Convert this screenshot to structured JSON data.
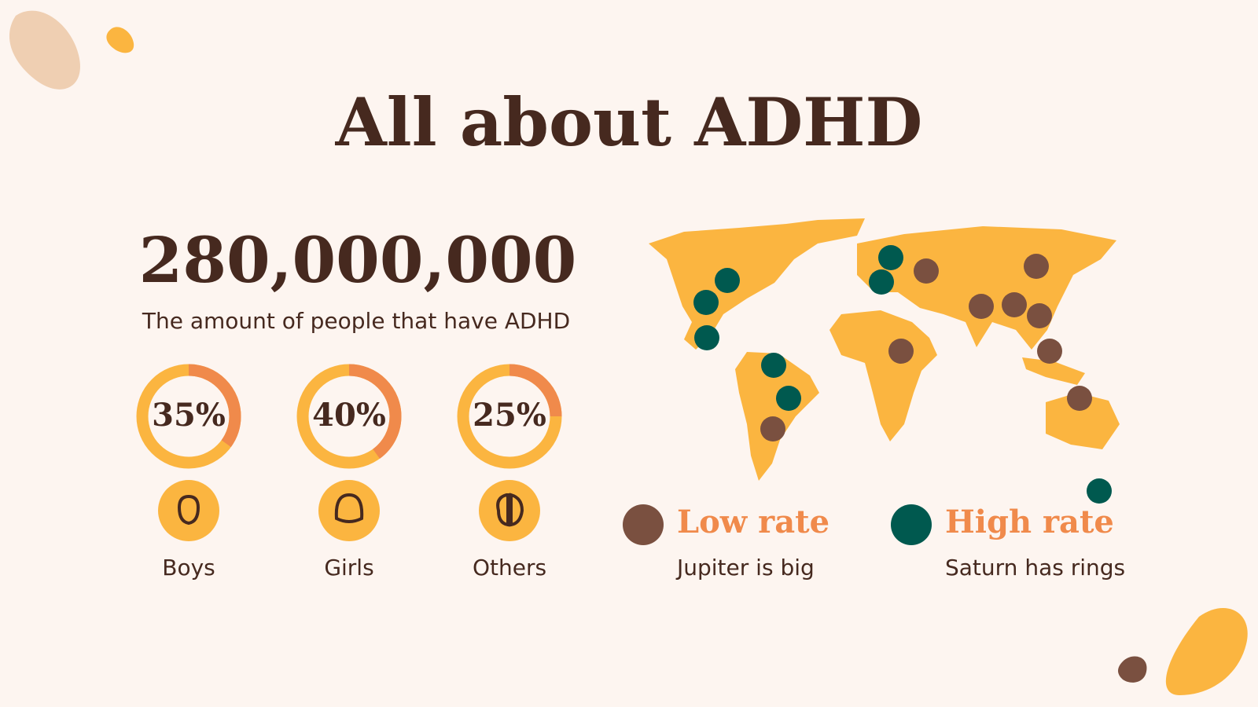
{
  "title": "All about ADHD",
  "headline": {
    "number": "280,000,000",
    "caption": "The amount of people that have ADHD"
  },
  "groups": [
    {
      "label": "Boys",
      "value": 35,
      "value_label": "35%"
    },
    {
      "label": "Girls",
      "value": 40,
      "value_label": "40%"
    },
    {
      "label": "Others",
      "value": 25,
      "value_label": "25%"
    }
  ],
  "legend": [
    {
      "title": "Low rate",
      "text": "Jupiter is big"
    },
    {
      "title": "High rate",
      "text": "Saturn has rings"
    }
  ]
}
